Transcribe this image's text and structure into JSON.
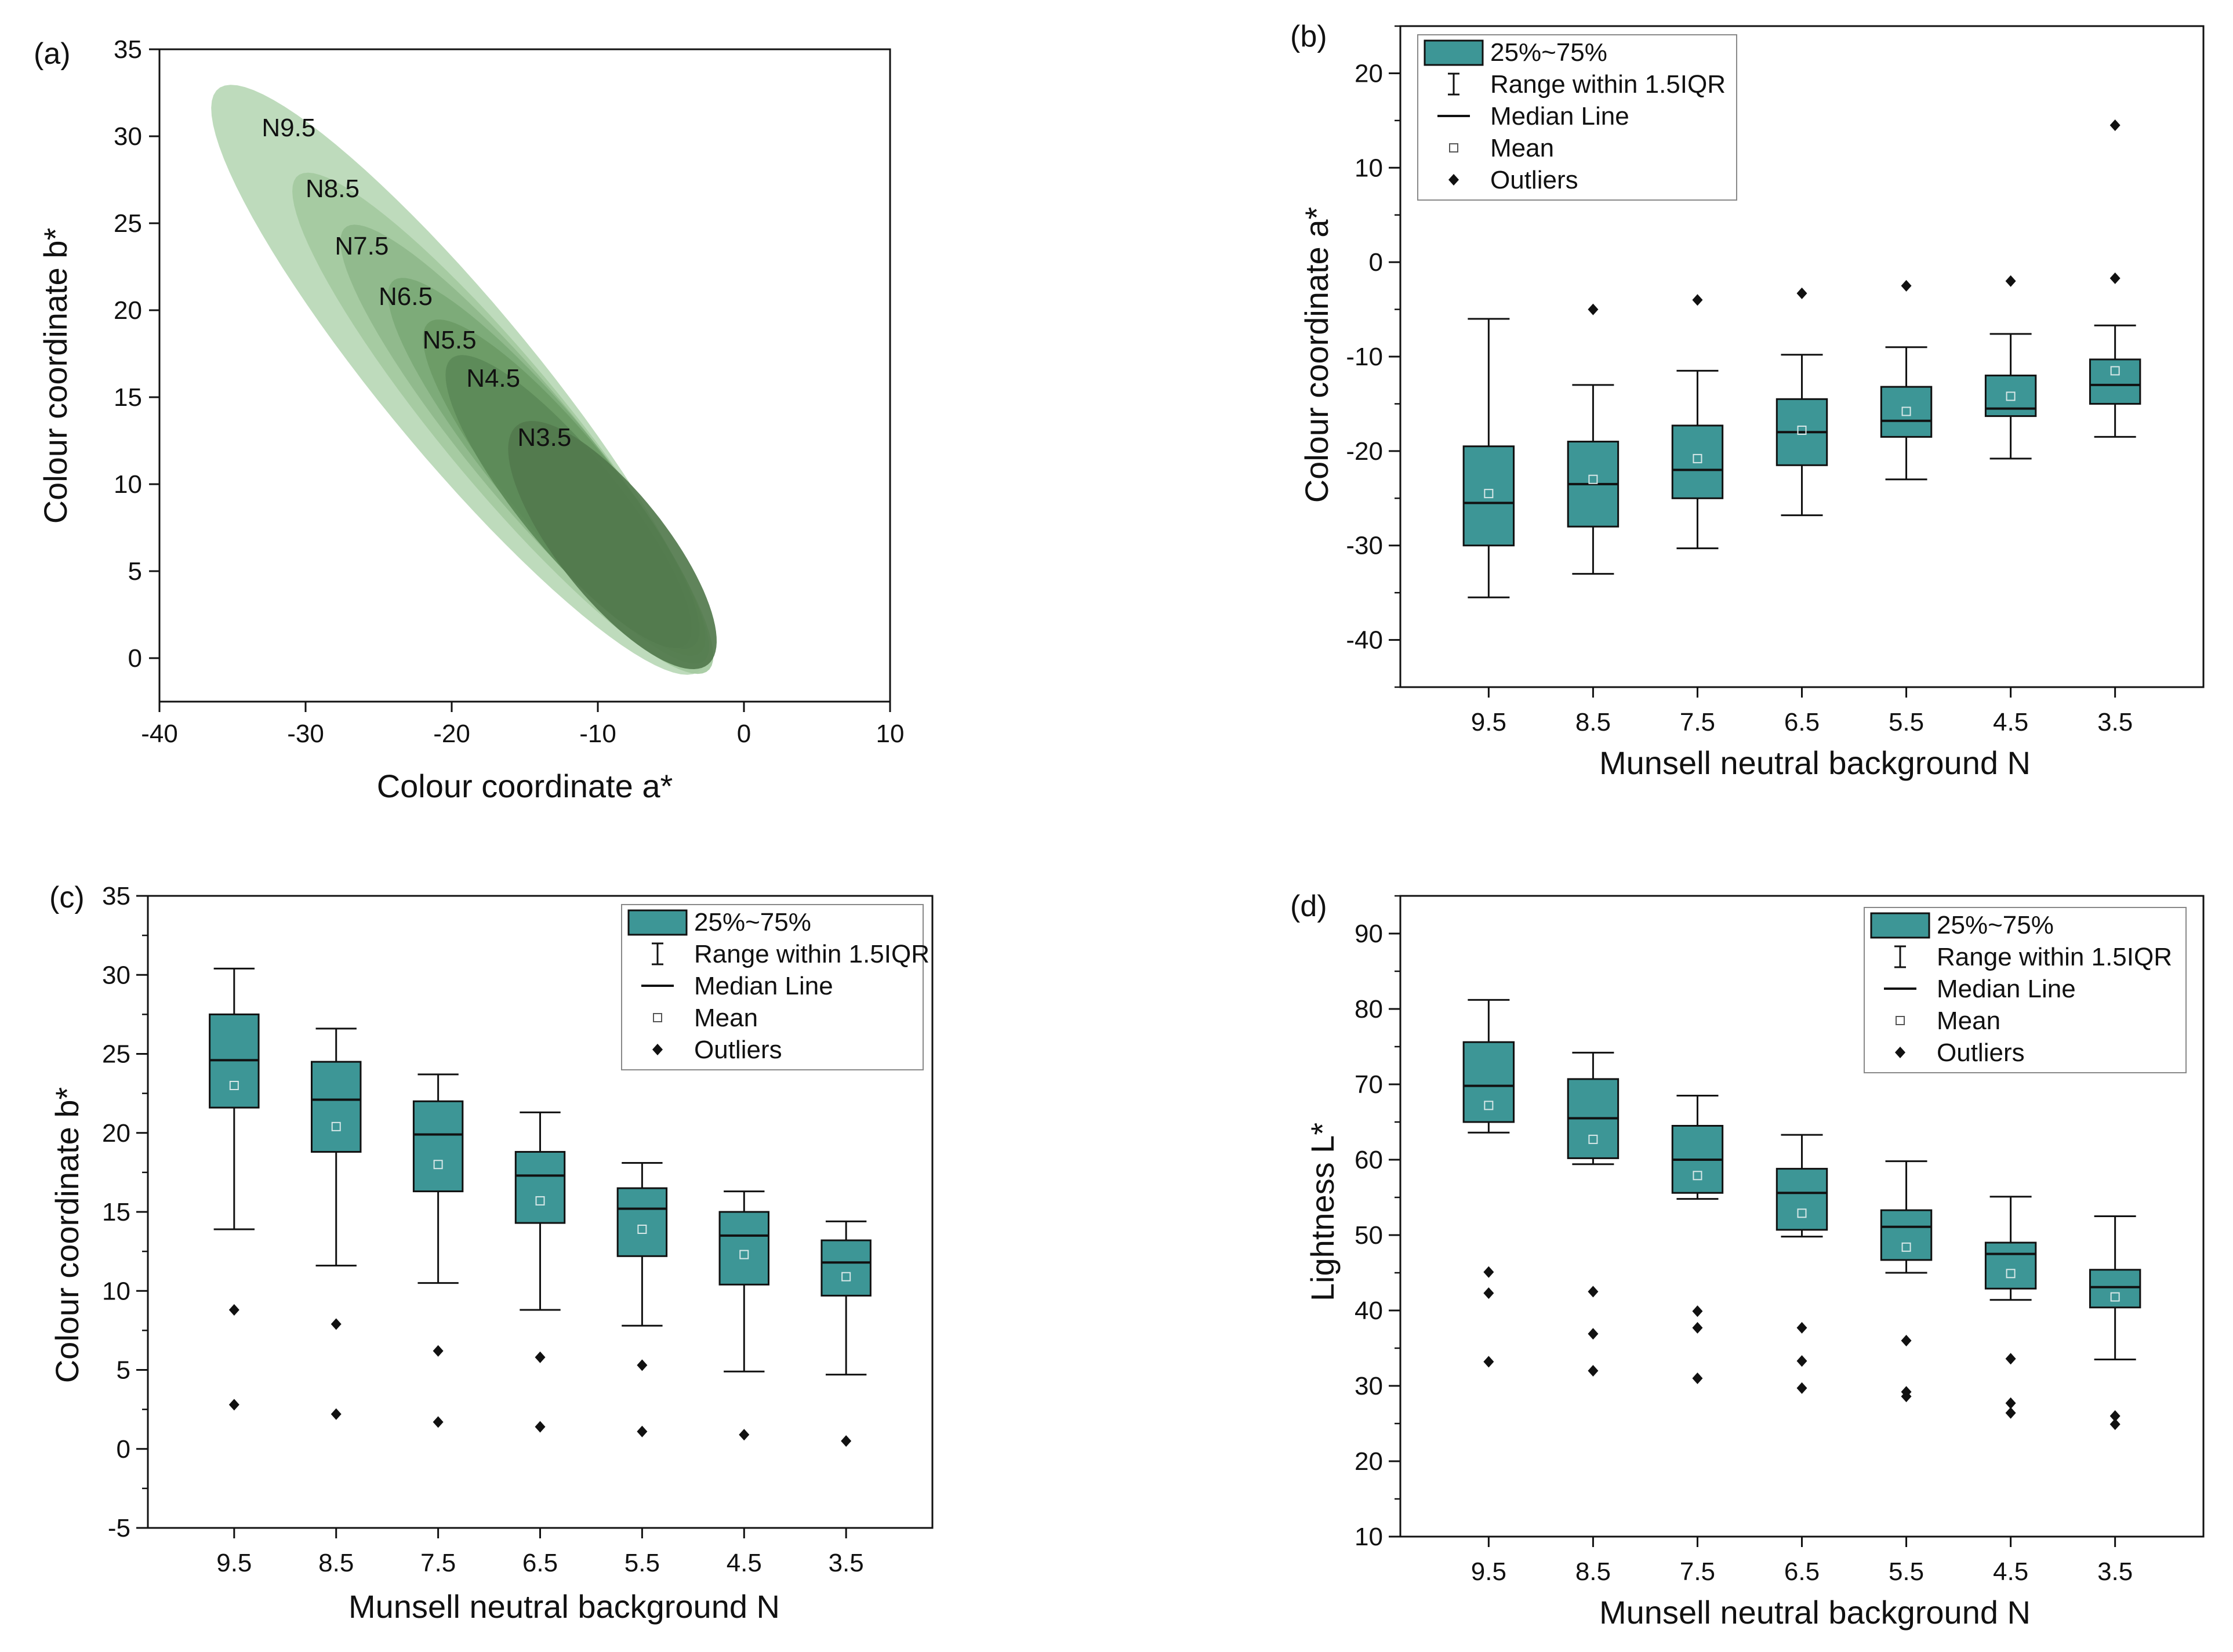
{
  "colors": {
    "box_fill": "#3d9696",
    "ellipse_shades": [
      "#b9d8b6",
      "#a4caa0",
      "#8fb98b",
      "#7ca977",
      "#6b9a66",
      "#5c8a58",
      "#527a4d"
    ],
    "ink": "#111111"
  },
  "chart_data": [
    {
      "type": "area",
      "panel_label": "(a)",
      "title": "",
      "xlabel": "Colour coordinate a*",
      "ylabel": "Colour coordinate b*",
      "xlim": [
        -40,
        10
      ],
      "ylim": [
        -2.5,
        35
      ],
      "xticks": [
        -40,
        -30,
        -20,
        -10,
        0,
        10
      ],
      "yticks": [
        0,
        5,
        10,
        15,
        20,
        25,
        30,
        35
      ],
      "series": [
        {
          "name": "N9.5",
          "label_at": [
            -33,
            30
          ],
          "center": [
            -19.5,
            16
          ],
          "semi_major": 23.5,
          "semi_minor": 4.8,
          "angle_deg": -45
        },
        {
          "name": "N8.5",
          "label_at": [
            -30,
            26.5
          ],
          "center": [
            -16.5,
            13.5
          ],
          "semi_major": 20,
          "semi_minor": 3.9,
          "angle_deg": -45
        },
        {
          "name": "N7.5",
          "label_at": [
            -28,
            23.2
          ],
          "center": [
            -15,
            12.3
          ],
          "semi_major": 17.5,
          "semi_minor": 3.5,
          "angle_deg": -45
        },
        {
          "name": "N6.5",
          "label_at": [
            -25,
            20.3
          ],
          "center": [
            -13.5,
            11
          ],
          "semi_major": 15,
          "semi_minor": 3.3,
          "angle_deg": -45
        },
        {
          "name": "N5.5",
          "label_at": [
            -22,
            17.8
          ],
          "center": [
            -12.5,
            10
          ],
          "semi_major": 13,
          "semi_minor": 3.2,
          "angle_deg": -45
        },
        {
          "name": "N4.5",
          "label_at": [
            -19,
            15.6
          ],
          "center": [
            -12,
            9
          ],
          "semi_major": 11.5,
          "semi_minor": 3.1,
          "angle_deg": -45
        },
        {
          "name": "N3.5",
          "label_at": [
            -15.5,
            12.2
          ],
          "center": [
            -9,
            6.5
          ],
          "semi_major": 9.5,
          "semi_minor": 3.4,
          "angle_deg": -45
        }
      ]
    },
    {
      "type": "box",
      "panel_label": "(b)",
      "xlabel": "Munsell neutral background N",
      "ylabel": "Colour coordinate a*",
      "ylim": [
        -45,
        25
      ],
      "yticks": [
        -40,
        -30,
        -20,
        -10,
        0,
        10,
        20
      ],
      "yminor": 5,
      "categories": [
        "9.5",
        "8.5",
        "7.5",
        "6.5",
        "5.5",
        "4.5",
        "3.5"
      ],
      "boxes": [
        {
          "whisker_low": -35.5,
          "q1": -30,
          "median": -25.5,
          "q3": -19.5,
          "whisker_high": -6,
          "mean": -24.5,
          "outliers": []
        },
        {
          "whisker_low": -33,
          "q1": -28,
          "median": -23.5,
          "q3": -19,
          "whisker_high": -13,
          "mean": -23,
          "outliers": [
            -5
          ]
        },
        {
          "whisker_low": -30.3,
          "q1": -25,
          "median": -22,
          "q3": -17.3,
          "whisker_high": -11.5,
          "mean": -20.8,
          "outliers": [
            -4
          ]
        },
        {
          "whisker_low": -26.8,
          "q1": -21.5,
          "median": -18,
          "q3": -14.5,
          "whisker_high": -9.8,
          "mean": -17.8,
          "outliers": [
            -3.3
          ]
        },
        {
          "whisker_low": -23,
          "q1": -18.5,
          "median": -16.8,
          "q3": -13.2,
          "whisker_high": -9,
          "mean": -15.8,
          "outliers": [
            -2.5
          ]
        },
        {
          "whisker_low": -20.8,
          "q1": -16.3,
          "median": -15.5,
          "q3": -12,
          "whisker_high": -7.6,
          "mean": -14.2,
          "outliers": [
            -2
          ]
        },
        {
          "whisker_low": -18.5,
          "q1": -15,
          "median": -13,
          "q3": -10.3,
          "whisker_high": -6.7,
          "mean": -11.5,
          "outliers": [
            14.5,
            -1.7
          ]
        }
      ],
      "legend": {
        "position": "top-left",
        "items": [
          "25%~75%",
          "Range within 1.5IQR",
          "Median Line",
          "Mean",
          "Outliers"
        ]
      }
    },
    {
      "type": "box",
      "panel_label": "(c)",
      "xlabel": "Munsell neutral background N",
      "ylabel": "Colour coordinate b*",
      "ylim": [
        -5,
        35
      ],
      "yticks": [
        -5,
        0,
        5,
        10,
        15,
        20,
        25,
        30,
        35
      ],
      "yminor": 2.5,
      "categories": [
        "9.5",
        "8.5",
        "7.5",
        "6.5",
        "5.5",
        "4.5",
        "3.5"
      ],
      "boxes": [
        {
          "whisker_low": 13.9,
          "q1": 21.6,
          "median": 24.6,
          "q3": 27.5,
          "whisker_high": 30.4,
          "mean": 23,
          "outliers": [
            8.8,
            2.8
          ]
        },
        {
          "whisker_low": 11.6,
          "q1": 18.8,
          "median": 22.1,
          "q3": 24.5,
          "whisker_high": 26.6,
          "mean": 20.4,
          "outliers": [
            7.9,
            2.2
          ]
        },
        {
          "whisker_low": 10.5,
          "q1": 16.3,
          "median": 19.9,
          "q3": 22,
          "whisker_high": 23.7,
          "mean": 18,
          "outliers": [
            6.2,
            1.7
          ]
        },
        {
          "whisker_low": 8.8,
          "q1": 14.3,
          "median": 17.3,
          "q3": 18.8,
          "whisker_high": 21.3,
          "mean": 15.7,
          "outliers": [
            5.8,
            1.4
          ]
        },
        {
          "whisker_low": 7.8,
          "q1": 12.2,
          "median": 15.2,
          "q3": 16.5,
          "whisker_high": 18.1,
          "mean": 13.9,
          "outliers": [
            5.3,
            1.1
          ]
        },
        {
          "whisker_low": 4.9,
          "q1": 10.4,
          "median": 13.5,
          "q3": 15,
          "whisker_high": 16.3,
          "mean": 12.3,
          "outliers": [
            0.9
          ]
        },
        {
          "whisker_low": 4.7,
          "q1": 9.7,
          "median": 11.8,
          "q3": 13.2,
          "whisker_high": 14.4,
          "mean": 10.9,
          "outliers": [
            0.5
          ]
        }
      ],
      "legend": {
        "position": "top-right",
        "items": [
          "25%~75%",
          "Range within 1.5IQR",
          "Median Line",
          "Mean",
          "Outliers"
        ]
      }
    },
    {
      "type": "box",
      "panel_label": "(d)",
      "xlabel": "Munsell neutral background N",
      "ylabel": "Lightness L*",
      "ylim": [
        10,
        95
      ],
      "yticks": [
        10,
        20,
        30,
        40,
        50,
        60,
        70,
        80,
        90
      ],
      "yminor": 5,
      "categories": [
        "9.5",
        "8.5",
        "7.5",
        "6.5",
        "5.5",
        "4.5",
        "3.5"
      ],
      "boxes": [
        {
          "whisker_low": 63.6,
          "q1": 65,
          "median": 69.8,
          "q3": 75.6,
          "whisker_high": 81.2,
          "mean": 67.2,
          "outliers": [
            45.1,
            42.3,
            33.2
          ]
        },
        {
          "whisker_low": 59.4,
          "q1": 60.2,
          "median": 65.5,
          "q3": 70.7,
          "whisker_high": 74.2,
          "mean": 62.7,
          "outliers": [
            42.5,
            36.9,
            32
          ]
        },
        {
          "whisker_low": 54.8,
          "q1": 55.6,
          "median": 60,
          "q3": 64.5,
          "whisker_high": 68.5,
          "mean": 57.9,
          "outliers": [
            39.9,
            37.7,
            31
          ]
        },
        {
          "whisker_low": 49.8,
          "q1": 50.7,
          "median": 55.6,
          "q3": 58.8,
          "whisker_high": 63.3,
          "mean": 52.9,
          "outliers": [
            37.7,
            33.3,
            29.7
          ]
        },
        {
          "whisker_low": 45,
          "q1": 46.7,
          "median": 51.1,
          "q3": 53.3,
          "whisker_high": 59.8,
          "mean": 48.4,
          "outliers": [
            36,
            29.2,
            28.6
          ]
        },
        {
          "whisker_low": 41.4,
          "q1": 42.9,
          "median": 47.5,
          "q3": 49,
          "whisker_high": 55.1,
          "mean": 44.9,
          "outliers": [
            33.6,
            27.7,
            26.4
          ]
        },
        {
          "whisker_low": 33.5,
          "q1": 40.4,
          "median": 43.1,
          "q3": 45.4,
          "whisker_high": 52.5,
          "mean": 41.8,
          "outliers": [
            26,
            24.9
          ]
        }
      ],
      "legend": {
        "position": "top-right",
        "items": [
          "25%~75%",
          "Range within 1.5IQR",
          "Median Line",
          "Mean",
          "Outliers"
        ]
      }
    }
  ]
}
